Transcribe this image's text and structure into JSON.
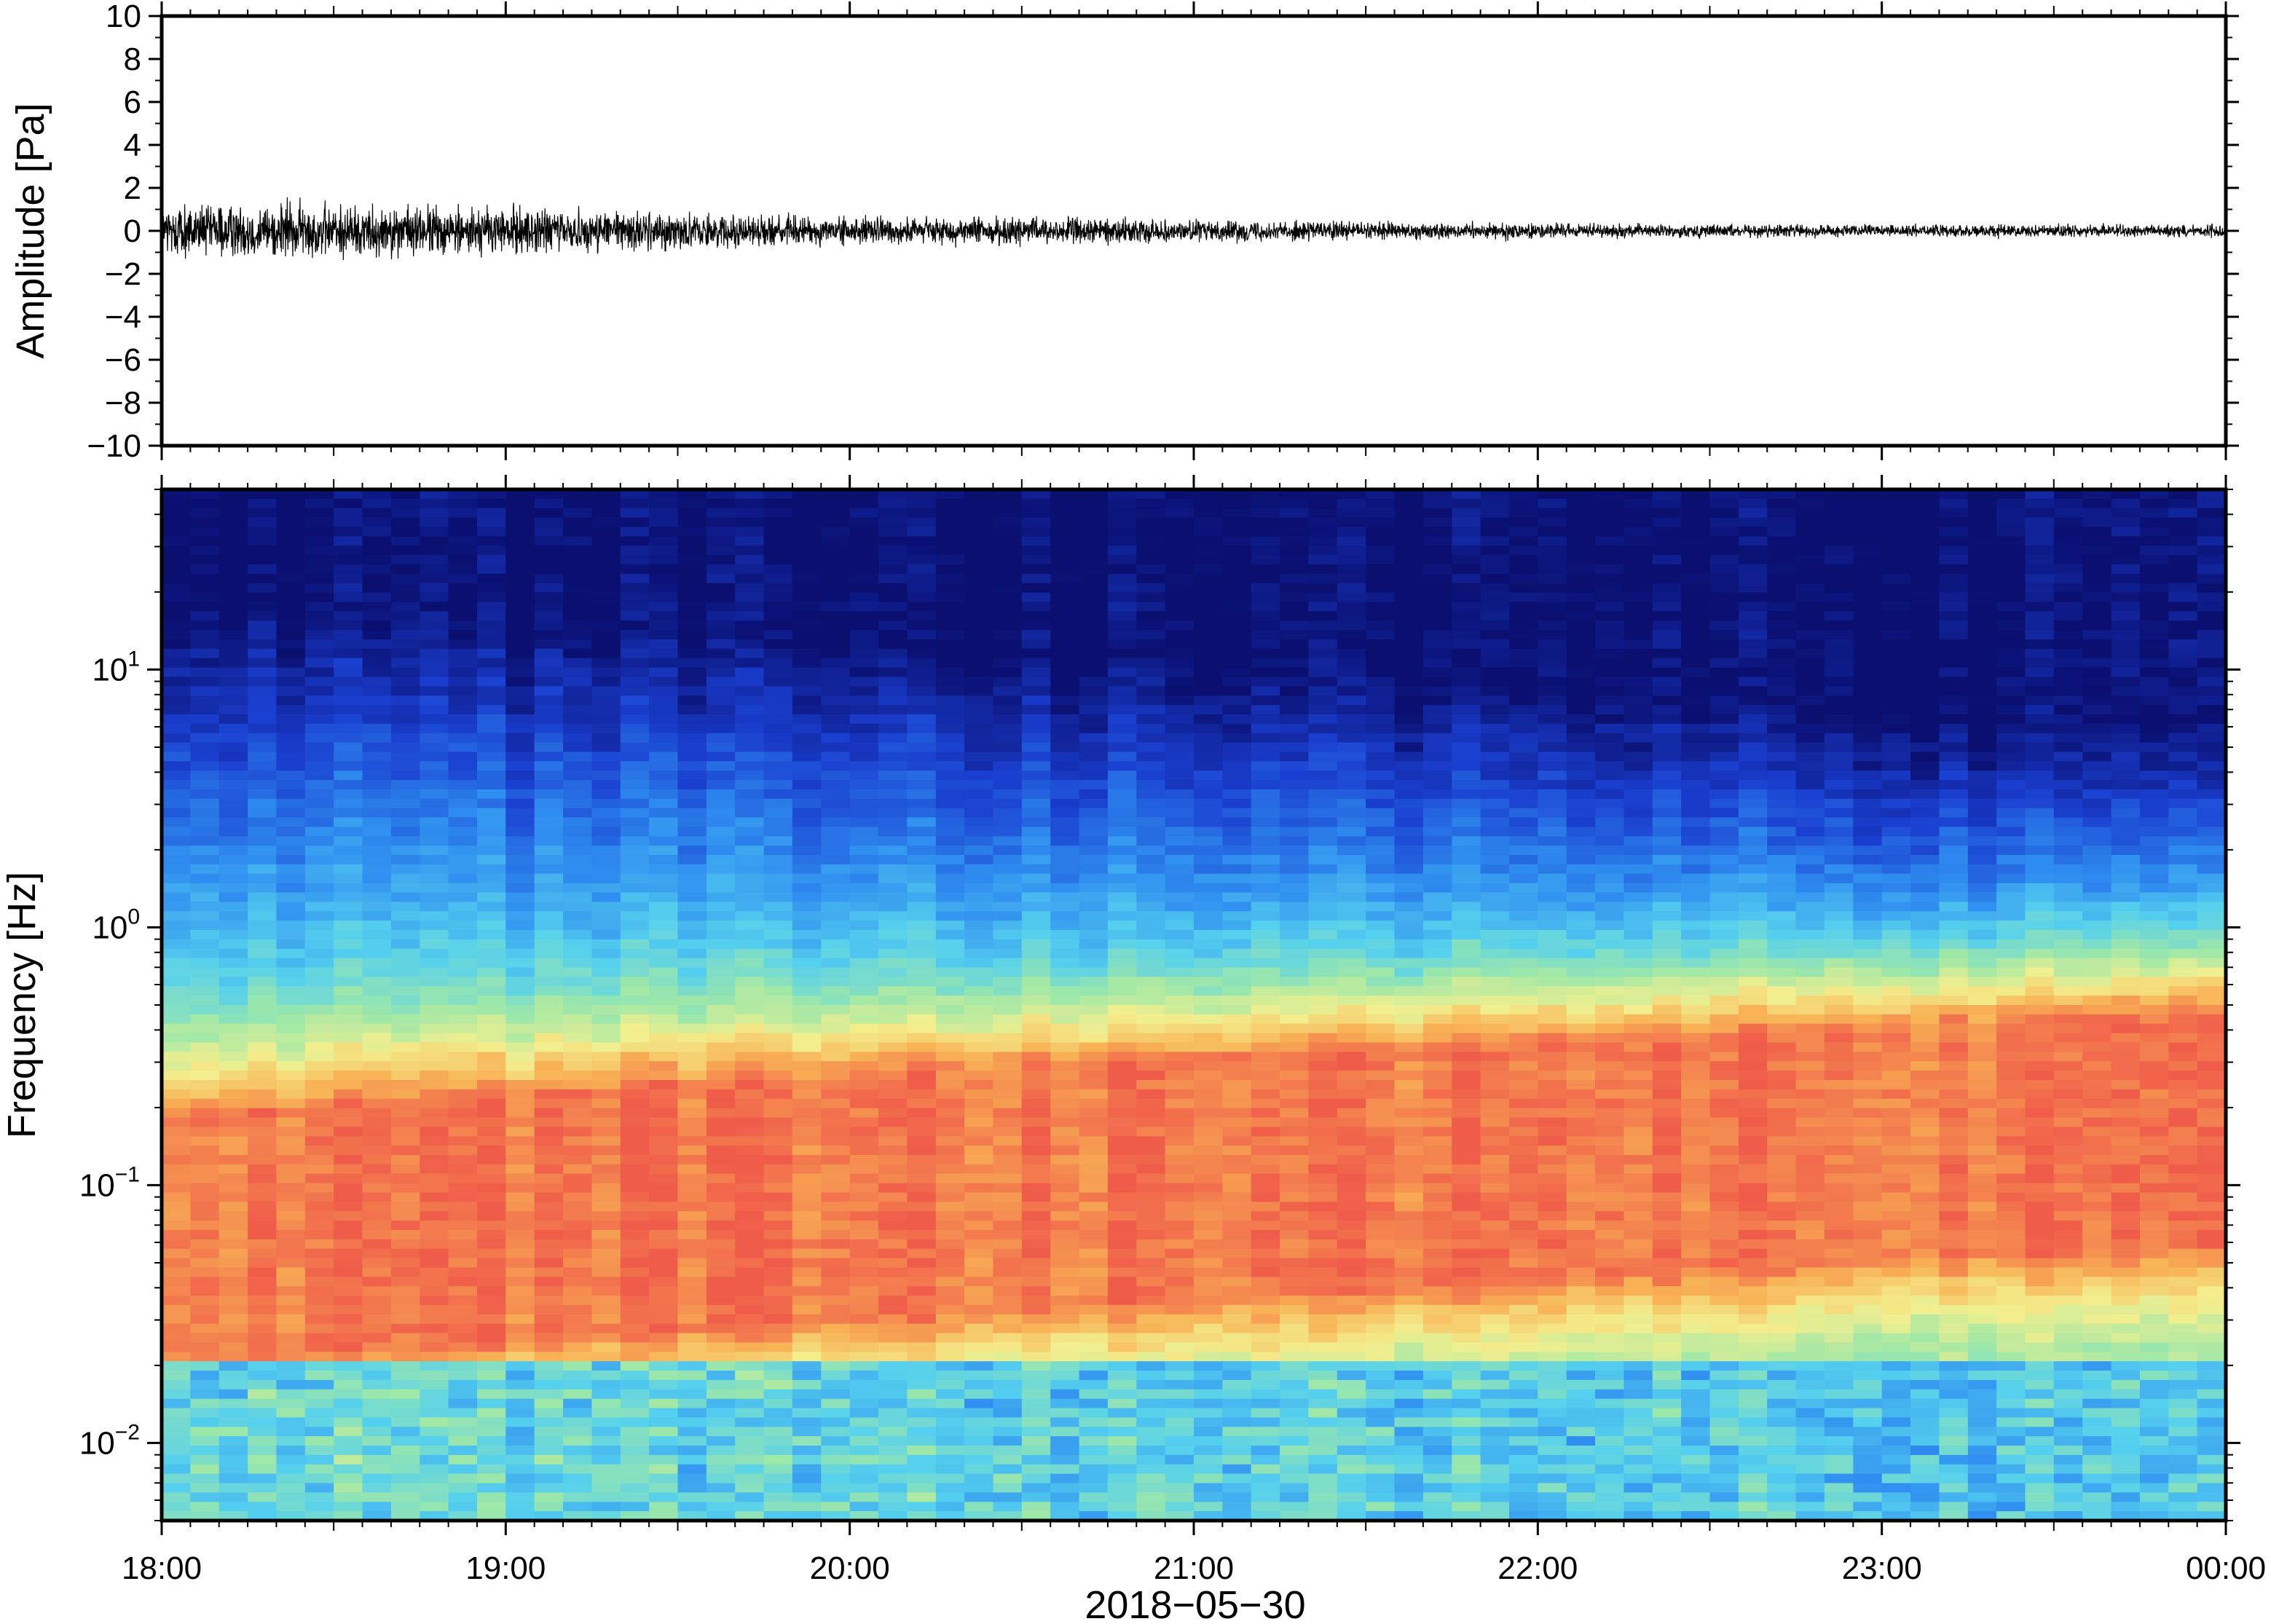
{
  "chart_data": [
    {
      "type": "line",
      "panel": "waveform",
      "ylabel": "Amplitude [Pa]",
      "ylim": [
        -10,
        10
      ],
      "yticks": [
        10,
        8,
        6,
        4,
        2,
        0,
        -2,
        -4,
        -6,
        -8,
        -10
      ],
      "ytick_labels": [
        "10",
        "8",
        "6",
        "4",
        "2",
        "0",
        "−2",
        "−4",
        "−6",
        "−8",
        "−10"
      ],
      "xlim": [
        "18:00",
        "00:00"
      ],
      "envelope": {
        "x": [
          "18:00",
          "18:30",
          "19:00",
          "19:30",
          "20:00",
          "20:30",
          "21:00",
          "21:30",
          "22:00",
          "22:30",
          "23:00",
          "23:30",
          "00:00"
        ],
        "amplitude": [
          0.9,
          0.9,
          0.8,
          0.6,
          0.45,
          0.45,
          0.35,
          0.3,
          0.25,
          0.22,
          0.2,
          0.2,
          0.2
        ]
      },
      "color": "#000000"
    },
    {
      "type": "heatmap",
      "panel": "spectrogram",
      "ylabel": "Frequency [Hz]",
      "xlabel": "2018−05−30",
      "yscale": "log",
      "ylim": [
        0.005,
        50
      ],
      "ytick_labels": [
        {
          "base": "10",
          "exp": "1",
          "value": 10
        },
        {
          "base": "10",
          "exp": "0",
          "value": 1
        },
        {
          "base": "10",
          "exp": "−1",
          "value": 0.1
        },
        {
          "base": "10",
          "exp": "−2",
          "value": 0.01
        }
      ],
      "xtick_labels": [
        "18:00",
        "19:00",
        "20:00",
        "21:00",
        "22:00",
        "23:00",
        "00:00"
      ],
      "colormap": "rainbow (blue=low, red=high)",
      "colors": [
        "#0a0f70",
        "#1a3fd0",
        "#2f8ef0",
        "#55d0ee",
        "#9ee8a8",
        "#f3ef8e",
        "#f8b255",
        "#f05c4a"
      ]
    }
  ]
}
